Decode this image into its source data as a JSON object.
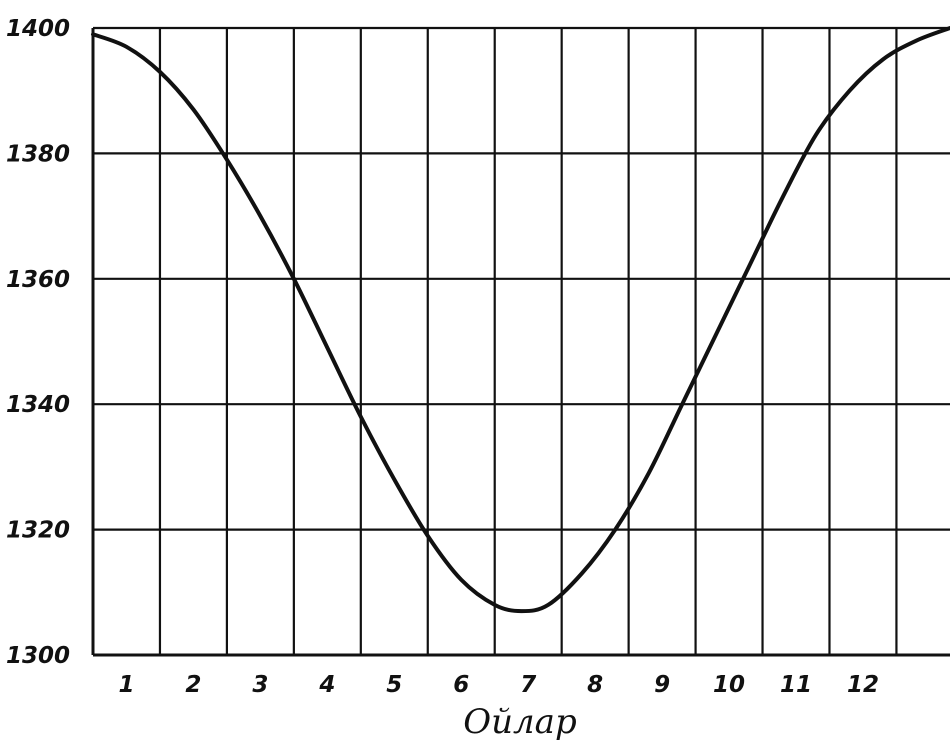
{
  "chart_data": {
    "type": "line",
    "title": "",
    "xlabel": "Ойлар",
    "ylabel": "",
    "x_ticks": [
      "1",
      "2",
      "3",
      "4",
      "5",
      "6",
      "7",
      "8",
      "9",
      "10",
      "11",
      "12"
    ],
    "y_ticks": [
      "1400",
      "1380",
      "1360",
      "1340",
      "1320",
      "1300"
    ],
    "xlim": [
      0.5,
      13.3
    ],
    "ylim": [
      1300,
      1400
    ],
    "grid": true,
    "series": [
      {
        "x": [
          0.5,
          1.0,
          1.5,
          2.0,
          2.5,
          3.0,
          3.5,
          4.0,
          4.5,
          5.0,
          5.5,
          6.0,
          6.5,
          6.9,
          7.3,
          7.8,
          8.3,
          8.8,
          9.3,
          9.8,
          10.3,
          10.8,
          11.3,
          11.8,
          12.3,
          12.8,
          13.3
        ],
        "y": [
          1399,
          1397,
          1393,
          1387,
          1379,
          1370,
          1360,
          1349,
          1338,
          1328,
          1319,
          1312,
          1308,
          1307,
          1308,
          1313,
          1320,
          1329,
          1340,
          1351,
          1362,
          1373,
          1383,
          1390,
          1395,
          1398,
          1400
        ]
      }
    ]
  }
}
